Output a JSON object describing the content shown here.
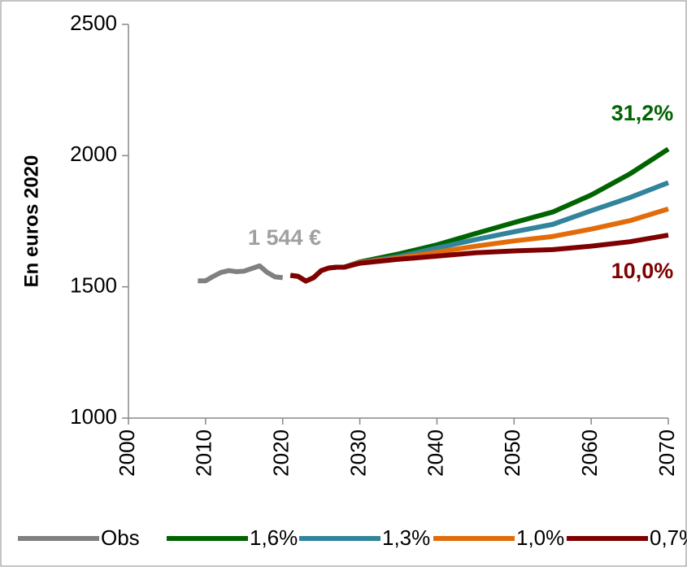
{
  "chart_data": {
    "type": "line",
    "y_label": "En euros 2020",
    "x": [
      2009,
      2010,
      2011,
      2012,
      2013,
      2014,
      2015,
      2016,
      2017,
      2018,
      2019,
      2020,
      2021,
      2022,
      2023,
      2024,
      2025,
      2026,
      2027,
      2028,
      2030,
      2035,
      2040,
      2045,
      2050,
      2055,
      2060,
      2065,
      2070
    ],
    "series": [
      {
        "name": "Obs",
        "color": "#808080",
        "values": [
          1523,
          1523,
          1540,
          1555,
          1562,
          1558,
          1560,
          1570,
          1580,
          1555,
          1538,
          1535,
          null,
          null,
          null,
          null,
          null,
          null,
          null,
          null,
          null,
          null,
          null,
          null,
          null,
          null,
          null,
          null,
          null
        ]
      },
      {
        "name": "1,6%",
        "color": "#006400",
        "values": [
          null,
          null,
          null,
          null,
          null,
          null,
          null,
          null,
          null,
          null,
          null,
          null,
          1544,
          1540,
          1522,
          1535,
          1562,
          1572,
          1575,
          1575,
          1595,
          1625,
          1660,
          1703,
          1745,
          1785,
          1850,
          1930,
          2025
        ]
      },
      {
        "name": "1,3%",
        "color": "#31849b",
        "values": [
          null,
          null,
          null,
          null,
          null,
          null,
          null,
          null,
          null,
          null,
          null,
          null,
          1544,
          1540,
          1522,
          1535,
          1562,
          1572,
          1575,
          1575,
          1593,
          1615,
          1648,
          1680,
          1710,
          1738,
          1790,
          1840,
          1897
        ]
      },
      {
        "name": "1,0%",
        "color": "#e36c0a",
        "values": [
          null,
          null,
          null,
          null,
          null,
          null,
          null,
          null,
          null,
          null,
          null,
          null,
          1544,
          1540,
          1522,
          1535,
          1562,
          1572,
          1575,
          1575,
          1592,
          1610,
          1632,
          1655,
          1675,
          1692,
          1720,
          1752,
          1797
        ]
      },
      {
        "name": "0,7%",
        "color": "#7f0000",
        "values": [
          null,
          null,
          null,
          null,
          null,
          null,
          null,
          null,
          null,
          null,
          null,
          null,
          1544,
          1540,
          1522,
          1535,
          1562,
          1572,
          1575,
          1575,
          1590,
          1605,
          1617,
          1630,
          1637,
          1642,
          1655,
          1672,
          1697
        ]
      }
    ],
    "annotations": [
      {
        "text": "31,2%",
        "color": "#006400"
      },
      {
        "text": "10,0%",
        "color": "#7f0000"
      },
      {
        "text": "1 544 €",
        "color": "#a0a0a0"
      }
    ],
    "xlim": [
      2000,
      2070
    ],
    "xticks": [
      2000,
      2010,
      2020,
      2030,
      2040,
      2050,
      2060,
      2070
    ],
    "ylim": [
      1000,
      2500
    ],
    "yticks": [
      1000,
      1500,
      2000,
      2500
    ],
    "grid": false,
    "legend": "bottom"
  }
}
